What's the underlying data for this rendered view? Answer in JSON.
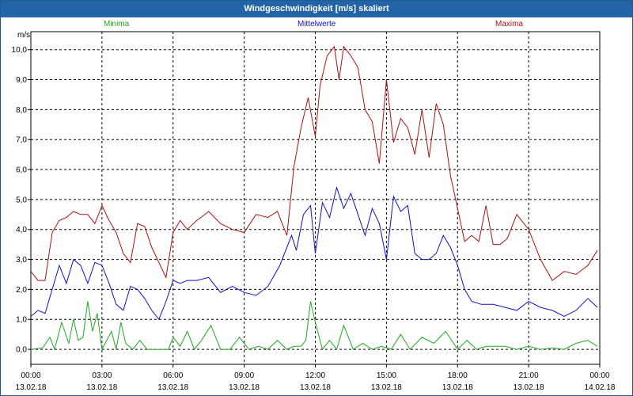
{
  "window": {
    "title": "Windgeschwindigkeit [m/s] skaliert"
  },
  "chart_data": {
    "type": "line",
    "title": "Windgeschwindigkeit [m/s] skaliert",
    "ylabel": "m/s",
    "ylim": [
      -0.5,
      10.6
    ],
    "xlim": [
      0,
      24
    ],
    "grid": true,
    "y_ticks": [
      "0,0",
      "1,0",
      "2,0",
      "3,0",
      "4,0",
      "5,0",
      "6,0",
      "7,0",
      "8,0",
      "9,0",
      "10,0"
    ],
    "y_tick_values": [
      0,
      1,
      2,
      3,
      4,
      5,
      6,
      7,
      8,
      9,
      10
    ],
    "x_ticks": [
      {
        "time": "00:00",
        "date": "13.02.18"
      },
      {
        "time": "03:00",
        "date": "13.02.18"
      },
      {
        "time": "06:00",
        "date": "13.02.18"
      },
      {
        "time": "09:00",
        "date": "13.02.18"
      },
      {
        "time": "12:00",
        "date": "13.02.18"
      },
      {
        "time": "15:00",
        "date": "13.02.18"
      },
      {
        "time": "18:00",
        "date": "13.02.18"
      },
      {
        "time": "21:00",
        "date": "13.02.18"
      },
      {
        "time": "00:00",
        "date": "14.02.18"
      }
    ],
    "series": [
      {
        "name": "Minima",
        "color": "#1dab1d",
        "hours": [
          0,
          0.5,
          0.8,
          1,
          1.3,
          1.6,
          1.8,
          2,
          2.2,
          2.4,
          2.6,
          2.8,
          3,
          3.2,
          3.4,
          3.6,
          3.8,
          4,
          4.3,
          4.6,
          4.9,
          5.2,
          5.5,
          5.8,
          6,
          6.3,
          6.6,
          6.9,
          7.2,
          7.6,
          8,
          8.4,
          8.8,
          9.2,
          9.6,
          10,
          10.4,
          10.8,
          11.1,
          11.4,
          11.6,
          11.8,
          12,
          12.3,
          12.6,
          12.9,
          13.2,
          13.6,
          14,
          14.4,
          14.8,
          15.2,
          15.6,
          16,
          16.5,
          17,
          17.5,
          18,
          18.4,
          18.8,
          19.2,
          19.6,
          20,
          20.5,
          21,
          21.5,
          22,
          22.5,
          23,
          23.5,
          23.9
        ],
        "values": [
          0,
          0.05,
          0.4,
          0,
          0.9,
          0.2,
          1.0,
          0.3,
          0.4,
          1.6,
          0.6,
          1.2,
          0,
          0.3,
          0.6,
          0,
          0.9,
          0.2,
          0,
          0.3,
          0,
          0,
          0,
          0,
          0.4,
          0.1,
          0.6,
          0,
          0.3,
          0.8,
          0,
          0,
          0.4,
          0,
          0.1,
          0,
          0.3,
          0,
          0.1,
          0.1,
          0.3,
          1.6,
          0.9,
          0,
          0.3,
          0,
          0.8,
          0,
          0.2,
          0,
          0.1,
          0,
          0.5,
          0,
          0.4,
          0.2,
          0.6,
          0,
          0.3,
          0,
          0.1,
          0.1,
          0.1,
          0,
          0.1,
          0,
          0.05,
          0,
          0.2,
          0.3,
          0.1
        ]
      },
      {
        "name": "Mittelwerte",
        "color": "#1010c8",
        "hours": [
          0,
          0.3,
          0.6,
          0.9,
          1.2,
          1.5,
          1.8,
          2.1,
          2.4,
          2.7,
          3,
          3.3,
          3.6,
          3.9,
          4.2,
          4.5,
          4.8,
          5.1,
          5.4,
          5.7,
          6,
          6.3,
          6.6,
          7,
          7.5,
          8,
          8.5,
          9,
          9.5,
          10,
          10.5,
          11,
          11.2,
          11.5,
          11.8,
          12,
          12.3,
          12.6,
          12.9,
          13.2,
          13.5,
          13.8,
          14.1,
          14.4,
          14.7,
          15,
          15.3,
          15.6,
          15.9,
          16.2,
          16.5,
          16.8,
          17.1,
          17.4,
          17.7,
          18,
          18.3,
          18.6,
          19,
          19.5,
          20,
          20.5,
          21,
          21.5,
          22,
          22.5,
          23,
          23.5,
          23.9
        ],
        "values": [
          1.1,
          1.3,
          1.2,
          2.0,
          2.8,
          2.2,
          3.0,
          2.8,
          2.2,
          2.9,
          2.8,
          2.2,
          1.5,
          1.3,
          2.1,
          2.0,
          1.7,
          1.3,
          1.0,
          1.6,
          2.3,
          2.2,
          2.3,
          2.3,
          2.4,
          1.9,
          2.1,
          1.9,
          1.8,
          2.1,
          2.8,
          3.8,
          3.3,
          4.5,
          4.8,
          3.2,
          4.9,
          4.4,
          5.4,
          4.7,
          5.2,
          4.5,
          3.8,
          4.7,
          4.2,
          3.0,
          5.1,
          4.6,
          4.8,
          3.2,
          3.0,
          3.0,
          3.2,
          3.8,
          3.4,
          2.8,
          2.0,
          1.6,
          1.5,
          1.5,
          1.4,
          1.3,
          1.6,
          1.4,
          1.3,
          1.1,
          1.3,
          1.7,
          1.4
        ]
      },
      {
        "name": "Maxima",
        "color": "#b01010",
        "hours": [
          0,
          0.3,
          0.6,
          0.9,
          1.2,
          1.5,
          1.8,
          2.1,
          2.4,
          2.7,
          3,
          3.3,
          3.6,
          3.9,
          4.2,
          4.5,
          4.8,
          5.1,
          5.4,
          5.7,
          6,
          6.3,
          6.6,
          7,
          7.5,
          8,
          8.5,
          9,
          9.5,
          10,
          10.4,
          10.8,
          11.1,
          11.4,
          11.7,
          12,
          12.2,
          12.5,
          12.8,
          13,
          13.2,
          13.5,
          13.8,
          14.1,
          14.4,
          14.7,
          15,
          15.3,
          15.6,
          15.9,
          16.2,
          16.5,
          16.8,
          17.1,
          17.4,
          17.7,
          18,
          18.3,
          18.6,
          18.9,
          19.2,
          19.5,
          19.8,
          20.1,
          20.5,
          21,
          21.5,
          22,
          22.5,
          23,
          23.5,
          23.9
        ],
        "values": [
          2.6,
          2.3,
          2.3,
          3.9,
          4.3,
          4.4,
          4.6,
          4.5,
          4.5,
          4.2,
          4.8,
          4.3,
          3.9,
          3.2,
          2.9,
          4.2,
          4.1,
          3.4,
          2.9,
          2.4,
          3.9,
          4.3,
          4.0,
          4.3,
          4.6,
          4.2,
          4.0,
          3.9,
          4.5,
          4.4,
          4.6,
          3.8,
          6.1,
          7.4,
          8.4,
          7.1,
          8.8,
          9.8,
          10.1,
          9.0,
          10.1,
          9.8,
          9.4,
          8.0,
          7.6,
          6.2,
          9.0,
          6.9,
          7.7,
          7.4,
          6.5,
          8.0,
          6.4,
          8.2,
          7.5,
          5.8,
          4.7,
          3.6,
          3.8,
          3.6,
          4.8,
          3.5,
          3.5,
          3.7,
          4.5,
          4.0,
          3.0,
          2.3,
          2.6,
          2.5,
          2.8,
          3.3
        ]
      }
    ]
  }
}
